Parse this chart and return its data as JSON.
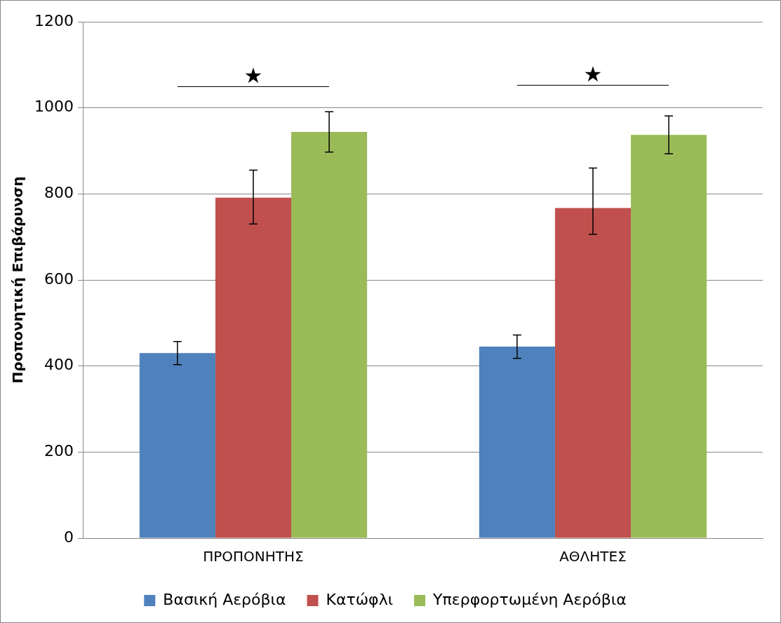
{
  "chart_data": {
    "type": "bar",
    "ylabel": "Προπονητική Επιβάρυνση",
    "categories": [
      "ΠΡΟΠΟΝΗΤΗΣ",
      "ΑΘΛΗΤΕΣ"
    ],
    "series": [
      {
        "name": "Βασική Αερόβια",
        "color": "#4f81bd",
        "values": [
          430,
          445
        ],
        "errors": [
          27,
          27
        ]
      },
      {
        "name": "Κατώφλι",
        "color": "#c0504d",
        "values": [
          791,
          767
        ],
        "errors": [
          [
            730,
            855
          ],
          [
            706,
            860
          ]
        ]
      },
      {
        "name": "Υπερφορτωμένη Αερόβια",
        "color": "#9bbb59",
        "values": [
          944,
          937
        ],
        "errors": [
          47,
          44
        ]
      }
    ],
    "ylim": [
      0,
      1200
    ],
    "yticks": [
      0,
      200,
      400,
      600,
      800,
      1000,
      1200
    ],
    "grid": "y",
    "legend": "bottom",
    "annotations": [
      "★",
      "★"
    ]
  }
}
